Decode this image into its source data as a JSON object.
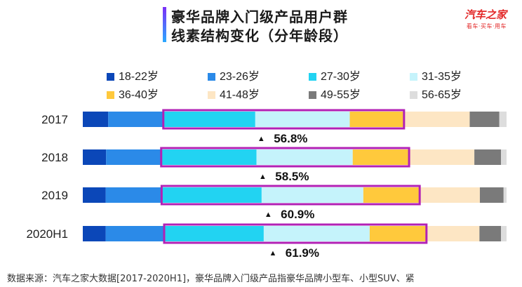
{
  "title": {
    "line1": "豪华品牌入门级产品用户群",
    "line2": "线素结构变化（分年龄段）"
  },
  "logo": {
    "name": "汽车之家",
    "tagline": "看车·买车·用车"
  },
  "source": "数据来源：汽车之家大数据[2017-2020H1]，豪华品牌入门级产品指豪华品牌小型车、小型SUV、紧",
  "colors": {
    "highlight_box": "#b221b5",
    "title_accent_top": "#7b2ff7",
    "title_accent_bottom": "#2aa9ff"
  },
  "chart_data": {
    "type": "bar",
    "orientation": "horizontal",
    "stacked": true,
    "normalized": true,
    "categories": [
      "2017",
      "2018",
      "2019",
      "2020H1"
    ],
    "series": [
      {
        "name": "18-22岁",
        "color": "#0b47b8",
        "values": [
          6.0,
          5.5,
          5.4,
          5.4
        ]
      },
      {
        "name": "23-26岁",
        "color": "#2b8ae8",
        "values": [
          13.0,
          13.0,
          13.2,
          13.8
        ]
      },
      {
        "name": "27-30岁",
        "color": "#22d3f2",
        "values": [
          21.7,
          22.5,
          23.6,
          23.5
        ]
      },
      {
        "name": "31-35岁",
        "color": "#c5f3fb",
        "values": [
          22.3,
          22.7,
          24.0,
          25.0
        ]
      },
      {
        "name": "36-40岁",
        "color": "#ffc93c",
        "values": [
          12.8,
          13.3,
          13.3,
          13.4
        ]
      },
      {
        "name": "41-48岁",
        "color": "#fde6c4",
        "values": [
          15.5,
          15.4,
          14.2,
          12.5
        ]
      },
      {
        "name": "49-55岁",
        "color": "#7a7a7a",
        "values": [
          7.0,
          6.3,
          5.6,
          5.1
        ]
      },
      {
        "name": "56-65岁",
        "color": "#dddddd",
        "values": [
          1.7,
          1.3,
          0.7,
          1.3
        ]
      }
    ],
    "highlight_series": [
      2,
      3,
      4
    ],
    "annotations": [
      "56.8%",
      "58.5%",
      "60.9%",
      "61.9%"
    ],
    "annotation_marker": "▲",
    "legend_position": "top",
    "xlim": [
      0,
      100
    ],
    "grid": false
  }
}
